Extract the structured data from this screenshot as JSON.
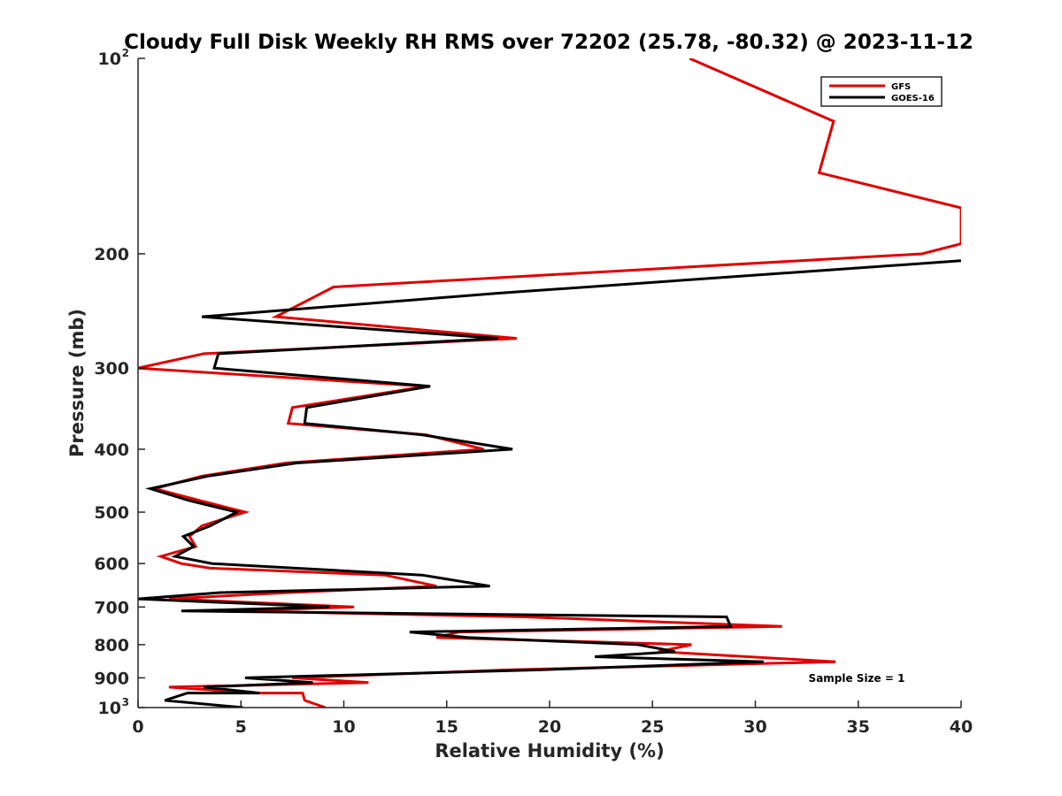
{
  "chart_data": {
    "type": "line",
    "title": "Cloudy Full Disk Weekly RH RMS over 72202 (25.78, -80.32) @ 2023-11-12",
    "xlabel": "Relative Humidity (%)",
    "ylabel": "Pressure (mb)",
    "xlim": [
      0,
      40
    ],
    "ylim": [
      100,
      1000
    ],
    "y_scale": "log",
    "y_reversed": true,
    "grid": false,
    "legend_position": "top-right",
    "x_ticks": [
      "0",
      "5",
      "10",
      "15",
      "20",
      "25",
      "30",
      "35",
      "40"
    ],
    "y_ticks": [
      {
        "base": "10",
        "exp": "2",
        "value": 100
      },
      {
        "base": "200",
        "exp": "",
        "value": 200
      },
      {
        "base": "300",
        "exp": "",
        "value": 300
      },
      {
        "base": "400",
        "exp": "",
        "value": 400
      },
      {
        "base": "500",
        "exp": "",
        "value": 500
      },
      {
        "base": "600",
        "exp": "",
        "value": 600
      },
      {
        "base": "700",
        "exp": "",
        "value": 700
      },
      {
        "base": "800",
        "exp": "",
        "value": 800
      },
      {
        "base": "900",
        "exp": "",
        "value": 900
      },
      {
        "base": "10",
        "exp": "3",
        "value": 1000
      }
    ],
    "series": [
      {
        "name": "GFS",
        "color": "#e00000",
        "points": [
          [
            26.8,
            100
          ],
          [
            33.8,
            125
          ],
          [
            33.1,
            150
          ],
          [
            40,
            170
          ],
          [
            40,
            193
          ],
          [
            38.1,
            200
          ],
          [
            9.5,
            225
          ],
          [
            6.7,
            250
          ],
          [
            18.4,
            270
          ],
          [
            3.2,
            285
          ],
          [
            0,
            300
          ],
          [
            14,
            320
          ],
          [
            7.5,
            345
          ],
          [
            7.3,
            365
          ],
          [
            14,
            380
          ],
          [
            16.8,
            400
          ],
          [
            7.2,
            420
          ],
          [
            3.1,
            440
          ],
          [
            0.8,
            460
          ],
          [
            3,
            480
          ],
          [
            5.2,
            500
          ],
          [
            3.1,
            525
          ],
          [
            2.5,
            545
          ],
          [
            2.8,
            565
          ],
          [
            1.1,
            585
          ],
          [
            2.1,
            600
          ],
          [
            3.5,
            610
          ],
          [
            12,
            625
          ],
          [
            14.5,
            650
          ],
          [
            7.3,
            665
          ],
          [
            1.5,
            680
          ],
          [
            10.5,
            700
          ],
          [
            4.9,
            710
          ],
          [
            18.8,
            725
          ],
          [
            31.3,
            750
          ],
          [
            15.6,
            765
          ],
          [
            14.5,
            780
          ],
          [
            26.9,
            800
          ],
          [
            25.3,
            820
          ],
          [
            33.9,
            850
          ],
          [
            18,
            875
          ],
          [
            7.5,
            900
          ],
          [
            11.2,
            915
          ],
          [
            1.5,
            930
          ],
          [
            5.7,
            950
          ],
          [
            8,
            950
          ],
          [
            8.1,
            975
          ],
          [
            9.1,
            1000
          ]
        ]
      },
      {
        "name": "GOES-16",
        "color": "#000000",
        "points": [
          [
            40,
            205
          ],
          [
            17.5,
            230
          ],
          [
            3.1,
            250
          ],
          [
            17.5,
            270
          ],
          [
            3.9,
            285
          ],
          [
            3.7,
            300
          ],
          [
            14.2,
            320
          ],
          [
            8.2,
            345
          ],
          [
            8.1,
            365
          ],
          [
            13.8,
            380
          ],
          [
            18.2,
            400
          ],
          [
            7.7,
            420
          ],
          [
            3.4,
            440
          ],
          [
            0.6,
            460
          ],
          [
            2.5,
            480
          ],
          [
            4.8,
            500
          ],
          [
            3.5,
            525
          ],
          [
            2.2,
            545
          ],
          [
            2.7,
            565
          ],
          [
            1.8,
            585
          ],
          [
            3.6,
            600
          ],
          [
            13.8,
            625
          ],
          [
            17.1,
            650
          ],
          [
            4,
            665
          ],
          [
            0,
            680
          ],
          [
            9.3,
            700
          ],
          [
            2.1,
            710
          ],
          [
            28.6,
            725
          ],
          [
            28.8,
            750
          ],
          [
            13.2,
            765
          ],
          [
            16,
            780
          ],
          [
            24.3,
            800
          ],
          [
            26.1,
            820
          ],
          [
            22.2,
            835
          ],
          [
            30.4,
            850
          ],
          [
            19.5,
            875
          ],
          [
            5.2,
            900
          ],
          [
            8.5,
            915
          ],
          [
            3.2,
            930
          ],
          [
            5.9,
            950
          ],
          [
            2.4,
            950
          ],
          [
            1.3,
            975
          ],
          [
            5.1,
            1000
          ]
        ]
      }
    ],
    "annotation": "Sample Size = 1"
  }
}
